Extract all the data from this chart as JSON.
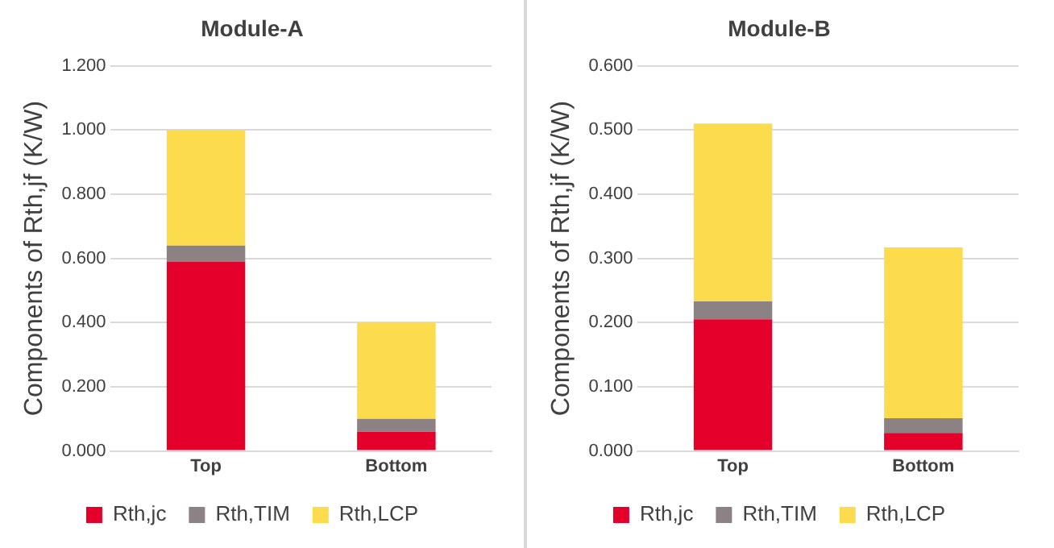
{
  "chart_data": [
    {
      "type": "bar",
      "stacked": true,
      "title": "Module-A",
      "ylabel": "Components of Rth,jf (K/W)",
      "categories": [
        "Top",
        "Bottom"
      ],
      "ylim": [
        0,
        1.2
      ],
      "yticks": [
        {
          "value": 0,
          "label": "0.000"
        },
        {
          "value": 0.2,
          "label": "0.200"
        },
        {
          "value": 0.4,
          "label": "0.400"
        },
        {
          "value": 0.6,
          "label": "0.600"
        },
        {
          "value": 0.8,
          "label": "0.800"
        },
        {
          "value": 1.0,
          "label": "1.000"
        },
        {
          "value": 1.2,
          "label": "1.200"
        }
      ],
      "grid": "y",
      "legend": "bottom",
      "series": [
        {
          "name": "Rth,jc",
          "color": "#e4002b",
          "values": [
            0.59,
            0.06
          ]
        },
        {
          "name": "Rth,TIM",
          "color": "#8c8284",
          "values": [
            0.05,
            0.04
          ]
        },
        {
          "name": "Rth,LCP",
          "color": "#fcdc4d",
          "values": [
            0.36,
            0.3
          ]
        }
      ]
    },
    {
      "type": "bar",
      "stacked": true,
      "title": "Module-B",
      "ylabel": "Components of Rth,jf (K/W)",
      "categories": [
        "Top",
        "Bottom"
      ],
      "ylim": [
        0,
        0.6
      ],
      "yticks": [
        {
          "value": 0,
          "label": "0.000"
        },
        {
          "value": 0.1,
          "label": "0.100"
        },
        {
          "value": 0.2,
          "label": "0.200"
        },
        {
          "value": 0.3,
          "label": "0.300"
        },
        {
          "value": 0.4,
          "label": "0.400"
        },
        {
          "value": 0.5,
          "label": "0.500"
        },
        {
          "value": 0.6,
          "label": "0.600"
        }
      ],
      "grid": "y",
      "legend": "bottom",
      "series": [
        {
          "name": "Rth,jc",
          "color": "#e4002b",
          "values": [
            0.205,
            0.028
          ]
        },
        {
          "name": "Rth,TIM",
          "color": "#8c8284",
          "values": [
            0.028,
            0.023
          ]
        },
        {
          "name": "Rth,LCP",
          "color": "#fcdc4d",
          "values": [
            0.277,
            0.266
          ]
        }
      ]
    }
  ]
}
